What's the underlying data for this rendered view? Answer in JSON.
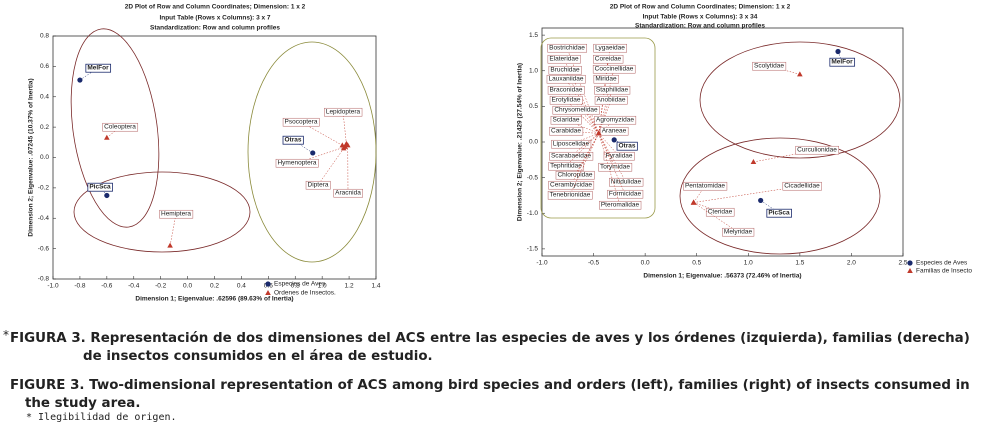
{
  "chart_data": [
    {
      "type": "scatter",
      "title_lines": [
        "2D Plot of Row and Column Coordinates; Dimension:  1  x  2",
        "Input Table (Rows x Columns): 3 x 7",
        "Standardization: Row and column profiles"
      ],
      "x_label": "Dimension 1; Eigenvalue: .62596 (89.63% of Inertia)",
      "y_label": "Dimension 2; Eigenvalue: .07245 (10.37% of Inertia)",
      "xlim": [
        -1.0,
        1.4
      ],
      "xticks": [
        {
          "value": -1.0,
          "label": "-1.0"
        },
        -0.8,
        -0.6,
        -0.4,
        -0.2,
        {
          "value": 0,
          "label": "0.0"
        },
        0.2,
        0.4,
        0.6,
        0.8,
        {
          "value": 1.0,
          "label": "1.0"
        },
        1.2,
        1.4
      ],
      "ylim": [
        -0.8,
        0.8
      ],
      "yticks": [
        -0.8,
        -0.6,
        -0.4,
        -0.2,
        {
          "value": 0,
          "label": "0.0"
        },
        0.2,
        0.4,
        0.6,
        0.8
      ],
      "series": [
        {
          "name": "Especies de Aves",
          "color": "#1a2a6c",
          "marker": "circle",
          "labels": [
            "MelFor",
            "PicSca",
            "Otras"
          ],
          "x": [
            -0.8,
            -0.6,
            0.93
          ],
          "y": [
            0.51,
            -0.25,
            0.03
          ]
        },
        {
          "name": "Ordenes de Insectos.",
          "color": "#c0392b",
          "marker": "triangle",
          "labels": [
            "Coleoptera",
            "Hemiptera",
            "Psocoptera",
            "Lepidoptera",
            "Hymenoptera",
            "Diptera",
            "Aracnida"
          ],
          "x": [
            -0.6,
            -0.13,
            1.15,
            1.18,
            1.17,
            1.16,
            1.19
          ],
          "y": [
            0.13,
            -0.58,
            0.08,
            0.09,
            0.07,
            0.06,
            0.08
          ]
        }
      ]
    },
    {
      "type": "scatter",
      "title_lines": [
        "2D Plot of Row and Column Coordinates; Dimension:  1  x  2",
        "Input Table (Rows x Columns): 3 x 34",
        "Standardization: Row and column profiles"
      ],
      "x_label": "Dimension 1; Eigenvalue: .56373 (72.46% of Inertia)",
      "y_label": "Dimension 2; Eigenvalue: .21429 (27.54% of Inertia)",
      "xlim": [
        -1.0,
        2.5
      ],
      "xticks": [
        {
          "value": -1.0,
          "label": "-1.0"
        },
        -0.5,
        {
          "value": 0,
          "label": "0.0"
        },
        0.5,
        {
          "value": 1.0,
          "label": "1.0"
        },
        1.5,
        {
          "value": 2.0,
          "label": "2.0"
        },
        2.5
      ],
      "ylim": [
        -1.6,
        1.6
      ],
      "yticks": [
        -1.5,
        {
          "value": -1.0,
          "label": "-1.0"
        },
        -0.5,
        {
          "value": 0,
          "label": "0.0"
        },
        0.5,
        {
          "value": 1.0,
          "label": "1.0"
        },
        1.5
      ],
      "series": [
        {
          "name": "Especies de Aves",
          "color": "#1a2a6c",
          "marker": "circle",
          "labels": [
            "MelFor",
            "PicSca",
            "Otras"
          ],
          "x": [
            1.87,
            1.12,
            -0.3
          ],
          "y": [
            1.27,
            -0.82,
            0.03
          ]
        },
        {
          "name": "Familias de Insecto",
          "color": "#c0392b",
          "marker": "triangle",
          "labels": [
            "Bostrichidae",
            "Lygaeidae",
            "Elateridae",
            "Coreidae",
            "Bruchidae",
            "Coccinellidae",
            "Lauxaniidae",
            "Miridae",
            "Braconidae",
            "Staphilidae",
            "Erotylidae",
            "Anobiidae",
            "Chrysomelidae",
            "Sciaridae",
            "Agromyzidae",
            "Carabidae",
            "Araneae",
            "Liposcelidae",
            "Scarabaeidae",
            "Pyralidae",
            "Tephritidae",
            "Torymidae",
            "Chloropidae",
            "Nitidulidae",
            "Cerambycidae",
            "Formicidae",
            "Tenebrionidae",
            "Pteromalidae",
            "Scolytidae",
            "Curculionidae",
            "Pentatomidae",
            "Cicadellidae",
            "Cteridae",
            "Melyridae"
          ],
          "x": [
            -0.45,
            -0.45,
            -0.45,
            -0.45,
            -0.45,
            -0.45,
            -0.45,
            -0.45,
            -0.45,
            -0.45,
            -0.45,
            -0.45,
            -0.45,
            -0.45,
            -0.45,
            -0.45,
            -0.45,
            -0.45,
            -0.45,
            -0.45,
            -0.45,
            -0.45,
            -0.45,
            -0.45,
            -0.45,
            -0.45,
            -0.45,
            -0.45,
            1.5,
            1.05,
            0.47,
            0.47,
            0.47,
            0.47
          ],
          "y": [
            0.12,
            0.12,
            0.12,
            0.12,
            0.12,
            0.12,
            0.12,
            0.12,
            0.12,
            0.12,
            0.12,
            0.12,
            0.12,
            0.12,
            0.12,
            0.12,
            0.12,
            0.12,
            0.12,
            0.12,
            0.12,
            0.12,
            0.12,
            0.12,
            0.12,
            0.12,
            0.12,
            0.12,
            0.95,
            -0.28,
            -0.85,
            -0.85,
            -0.85,
            -0.85
          ]
        }
      ]
    }
  ],
  "captions": {
    "spanish": {
      "marker": "*",
      "text": "FIGURA 3. Representación de dos dimensiones del ACS entre las especies de aves y los órdenes (izquierda), familias (derecha) de insectos consumidos en el área de estudio."
    },
    "english": {
      "text": "FIGURE 3. Two-dimensional representation of ACS among bird species and orders (left), families (right) of insects consumed in the study area."
    },
    "footnote": "* Ilegibilidad de origen."
  }
}
